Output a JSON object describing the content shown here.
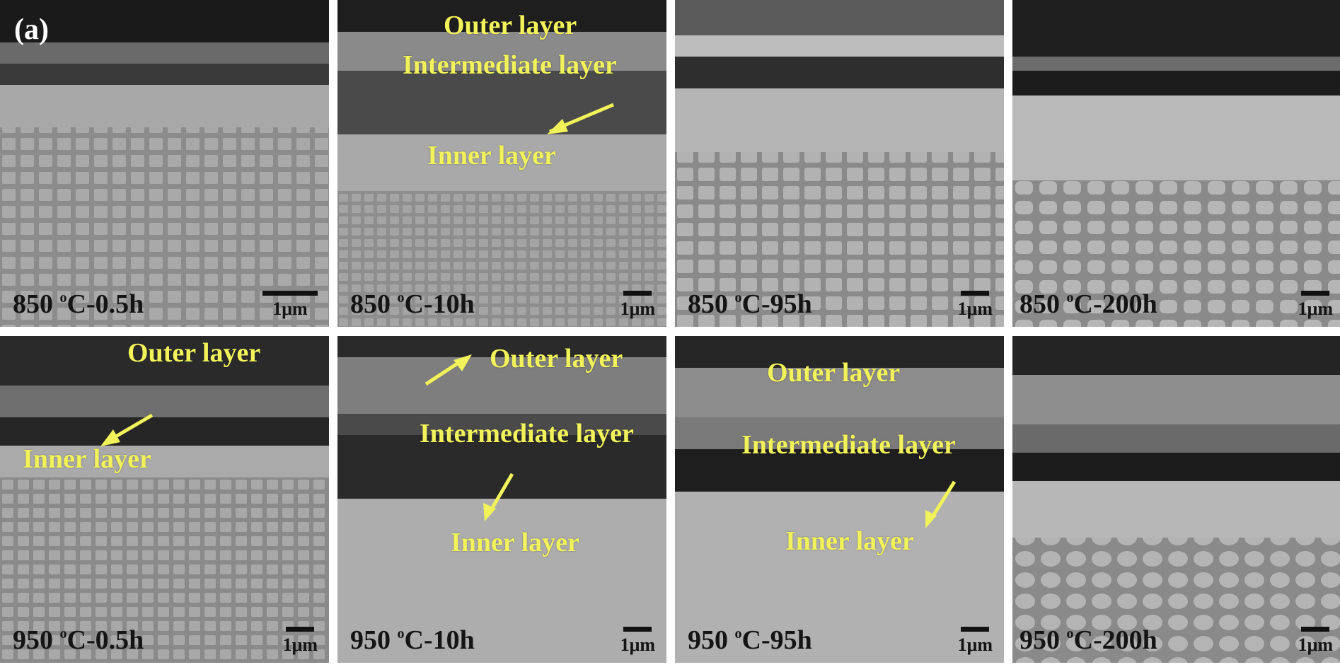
{
  "figure": {
    "panel_tag": "(a)",
    "panels": [
      {
        "condition_temp": "850 ",
        "condition_unit": "C-0.5h",
        "scale": "1μm",
        "layers": {}
      },
      {
        "condition_temp": "850 ",
        "condition_unit": "C-10h",
        "scale": "1μm",
        "layers": {
          "outer": "Outer layer",
          "intermediate": "Intermediate layer",
          "inner": "Inner layer"
        }
      },
      {
        "condition_temp": "850 ",
        "condition_unit": "C-95h",
        "scale": "1μm",
        "layers": {}
      },
      {
        "condition_temp": "850 ",
        "condition_unit": "C-200h",
        "scale": "1μm",
        "layers": {}
      },
      {
        "condition_temp": "950 ",
        "condition_unit": "C-0.5h",
        "scale": "1μm",
        "layers": {
          "outer": "Outer layer",
          "inner": "Inner layer"
        }
      },
      {
        "condition_temp": "950 ",
        "condition_unit": "C-10h",
        "scale": "1μm",
        "layers": {
          "outer": "Outer layer",
          "intermediate": "Intermediate layer",
          "inner": "Inner layer"
        }
      },
      {
        "condition_temp": "950 ",
        "condition_unit": "C-95h",
        "scale": "1μm",
        "layers": {
          "outer": "Outer layer",
          "intermediate": "Intermediate layer",
          "inner": "Inner layer"
        }
      },
      {
        "condition_temp": "950 ",
        "condition_unit": "C-200h",
        "scale": "1μm",
        "layers": {}
      }
    ],
    "degree_symbol": "o"
  },
  "colors": {
    "label_yellow": "#f2f25a",
    "scale_text": "#141414"
  }
}
